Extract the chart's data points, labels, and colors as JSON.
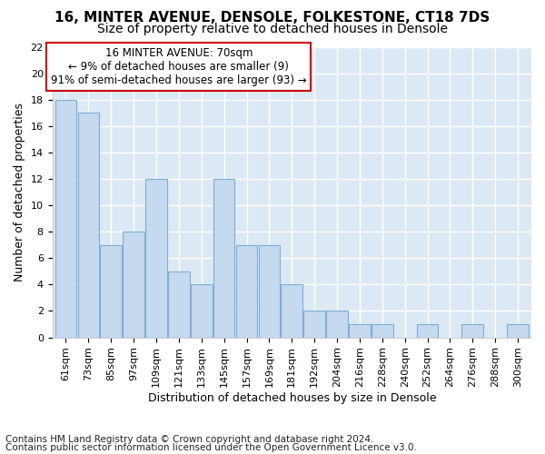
{
  "title1": "16, MINTER AVENUE, DENSOLE, FOLKESTONE, CT18 7DS",
  "title2": "Size of property relative to detached houses in Densole",
  "xlabel": "Distribution of detached houses by size in Densole",
  "ylabel": "Number of detached properties",
  "footnote1": "Contains HM Land Registry data © Crown copyright and database right 2024.",
  "footnote2": "Contains public sector information licensed under the Open Government Licence v3.0.",
  "annotation_line1": "16 MINTER AVENUE: 70sqm",
  "annotation_line2": "← 9% of detached houses are smaller (9)",
  "annotation_line3": "91% of semi-detached houses are larger (93) →",
  "bar_labels": [
    "61sqm",
    "73sqm",
    "85sqm",
    "97sqm",
    "109sqm",
    "121sqm",
    "133sqm",
    "145sqm",
    "157sqm",
    "169sqm",
    "181sqm",
    "192sqm",
    "204sqm",
    "216sqm",
    "228sqm",
    "240sqm",
    "252sqm",
    "264sqm",
    "276sqm",
    "288sqm",
    "300sqm"
  ],
  "bar_values": [
    18,
    17,
    7,
    8,
    12,
    5,
    4,
    12,
    7,
    7,
    4,
    2,
    2,
    1,
    1,
    0,
    1,
    0,
    1,
    0,
    1
  ],
  "bar_color": "#c5d9ef",
  "bar_edge_color": "#7bafd4",
  "annotation_box_color": "#ffffff",
  "annotation_box_edge": "#cc0000",
  "ylim": [
    0,
    22
  ],
  "yticks": [
    0,
    2,
    4,
    6,
    8,
    10,
    12,
    14,
    16,
    18,
    20,
    22
  ],
  "bg_color": "#dce9f5",
  "grid_color": "#ffffff",
  "fig_bg": "#ffffff",
  "title1_fontsize": 11,
  "title2_fontsize": 10,
  "axis_label_fontsize": 9,
  "tick_fontsize": 8,
  "footnote_fontsize": 7.5
}
